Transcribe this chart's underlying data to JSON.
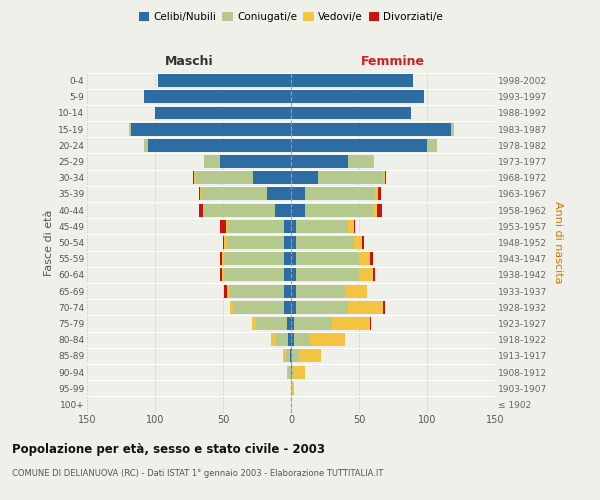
{
  "age_groups": [
    "100+",
    "95-99",
    "90-94",
    "85-89",
    "80-84",
    "75-79",
    "70-74",
    "65-69",
    "60-64",
    "55-59",
    "50-54",
    "45-49",
    "40-44",
    "35-39",
    "30-34",
    "25-29",
    "20-24",
    "15-19",
    "10-14",
    "5-9",
    "0-4"
  ],
  "birth_years": [
    "≤ 1902",
    "1903-1907",
    "1908-1912",
    "1913-1917",
    "1918-1922",
    "1923-1927",
    "1928-1932",
    "1933-1937",
    "1938-1942",
    "1943-1947",
    "1948-1952",
    "1953-1957",
    "1958-1962",
    "1963-1967",
    "1968-1972",
    "1973-1977",
    "1978-1982",
    "1983-1987",
    "1988-1992",
    "1993-1997",
    "1998-2002"
  ],
  "maschi_celibi": [
    0,
    0,
    0,
    1,
    2,
    3,
    5,
    5,
    5,
    5,
    5,
    5,
    12,
    18,
    28,
    52,
    105,
    118,
    100,
    108,
    98
  ],
  "maschi_coniugati": [
    0,
    0,
    2,
    3,
    9,
    23,
    38,
    40,
    44,
    44,
    42,
    42,
    52,
    48,
    42,
    12,
    3,
    1,
    0,
    0,
    0
  ],
  "maschi_vedovi": [
    0,
    0,
    1,
    2,
    4,
    3,
    2,
    2,
    2,
    2,
    2,
    1,
    1,
    1,
    1,
    0,
    0,
    0,
    0,
    0,
    0
  ],
  "maschi_divorziati": [
    0,
    0,
    0,
    0,
    0,
    0,
    0,
    2,
    1,
    1,
    1,
    4,
    3,
    1,
    1,
    0,
    0,
    0,
    0,
    0,
    0
  ],
  "femmine_nubili": [
    0,
    0,
    1,
    1,
    2,
    2,
    4,
    4,
    4,
    4,
    4,
    4,
    10,
    10,
    20,
    42,
    100,
    118,
    88,
    98,
    90
  ],
  "femmine_coniugate": [
    0,
    0,
    1,
    5,
    12,
    28,
    38,
    36,
    46,
    46,
    42,
    38,
    50,
    52,
    48,
    18,
    7,
    2,
    0,
    0,
    0
  ],
  "femmine_vedove": [
    0,
    2,
    8,
    16,
    26,
    28,
    26,
    16,
    10,
    8,
    6,
    4,
    3,
    2,
    1,
    1,
    0,
    0,
    0,
    0,
    0
  ],
  "femmine_divorziate": [
    0,
    0,
    0,
    0,
    0,
    1,
    1,
    0,
    2,
    2,
    2,
    1,
    4,
    2,
    1,
    0,
    0,
    0,
    0,
    0,
    0
  ],
  "colors": {
    "celibi_nubili": "#2e6da4",
    "coniugati": "#b5c98e",
    "vedovi": "#f5c342",
    "divorziati": "#cc1111"
  },
  "xlim": 150,
  "title": "Popolazione per età, sesso e stato civile - 2003",
  "subtitle": "COMUNE DI DELIANUOVA (RC) - Dati ISTAT 1° gennaio 2003 - Elaborazione TUTTITALIA.IT",
  "ylabel_left": "Fasce di età",
  "ylabel_right": "Anni di nascita",
  "xlabel_maschi": "Maschi",
  "xlabel_femmine": "Femmine",
  "bg_color": "#f0f0ea",
  "bar_height": 0.8
}
